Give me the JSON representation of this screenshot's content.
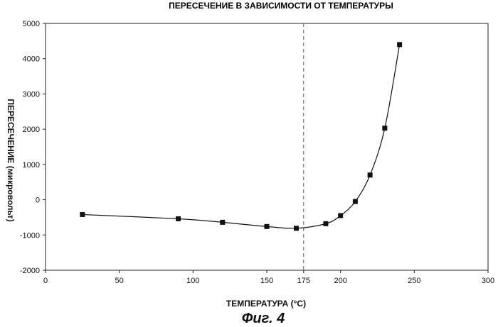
{
  "chart_data": {
    "type": "line",
    "title": "ПЕРЕСЕЧЕНИЕ В ЗАВИСИМОСТИ ОТ ТЕМПЕРАТУРЫ",
    "xlabel": "ТЕМПЕРАТУРА (°C)",
    "ylabel": "ПЕРЕСЕЧЕНИЕ (микровольт)",
    "caption": "Фиг. 4",
    "xlim": [
      0,
      300
    ],
    "ylim": [
      -2000,
      5000
    ],
    "x_ticks": [
      0,
      50,
      100,
      150,
      175,
      200,
      250,
      300
    ],
    "y_ticks": [
      -2000,
      -1000,
      0,
      1000,
      2000,
      3000,
      4000,
      5000
    ],
    "vline_x": 175,
    "grid": false,
    "marker": "square",
    "series": [
      {
        "x": [
          25,
          90,
          120,
          150,
          170,
          190,
          200,
          210,
          220,
          230,
          240
        ],
        "y": [
          -420,
          -540,
          -640,
          -760,
          -810,
          -680,
          -450,
          -50,
          700,
          2030,
          4400
        ]
      }
    ]
  }
}
